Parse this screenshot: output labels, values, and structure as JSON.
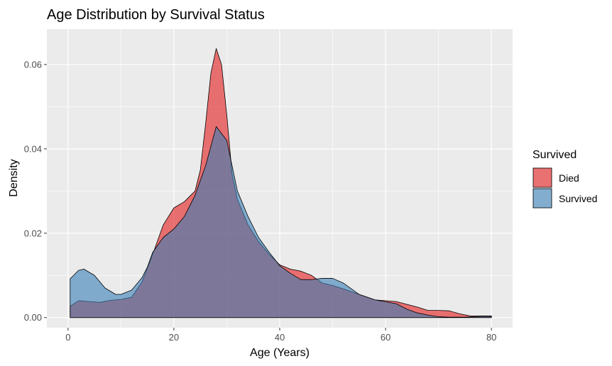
{
  "chart_data": {
    "type": "area",
    "title": "Age Distribution by Survival Status",
    "xlabel": "Age (Years)",
    "ylabel": "Density",
    "xlim": [
      -4,
      84
    ],
    "ylim": [
      -0.0024,
      0.0684
    ],
    "x_ticks": [
      {
        "value": 0,
        "label": "0"
      },
      {
        "value": 20,
        "label": "20"
      },
      {
        "value": 40,
        "label": "40"
      },
      {
        "value": 60,
        "label": "60"
      },
      {
        "value": 80,
        "label": "80"
      }
    ],
    "y_ticks": [
      {
        "value": 0,
        "label": "0.00"
      },
      {
        "value": 0.02,
        "label": "0.02"
      },
      {
        "value": 0.04,
        "label": "0.04"
      },
      {
        "value": 0.06,
        "label": "0.06"
      }
    ],
    "grid": true,
    "legend_position": "right",
    "legend_title": "Survived",
    "series": [
      {
        "name": "Died",
        "color": "#E41A1C",
        "alpha": 0.6,
        "points": [
          [
            0.4,
            0.0027
          ],
          [
            2,
            0.004
          ],
          [
            4,
            0.0038
          ],
          [
            6,
            0.0036
          ],
          [
            8,
            0.0041
          ],
          [
            10,
            0.0043
          ],
          [
            12,
            0.0048
          ],
          [
            14,
            0.0085
          ],
          [
            16,
            0.015
          ],
          [
            18,
            0.022
          ],
          [
            20,
            0.026
          ],
          [
            22,
            0.0275
          ],
          [
            24,
            0.03
          ],
          [
            25,
            0.035
          ],
          [
            26,
            0.046
          ],
          [
            27,
            0.058
          ],
          [
            28,
            0.0638
          ],
          [
            29,
            0.06
          ],
          [
            30,
            0.048
          ],
          [
            31,
            0.034
          ],
          [
            32,
            0.028
          ],
          [
            34,
            0.022
          ],
          [
            36,
            0.018
          ],
          [
            38,
            0.015
          ],
          [
            40,
            0.0125
          ],
          [
            42,
            0.0115
          ],
          [
            44,
            0.011
          ],
          [
            46,
            0.01
          ],
          [
            48,
            0.0082
          ],
          [
            50,
            0.0076
          ],
          [
            52,
            0.0068
          ],
          [
            55,
            0.0055
          ],
          [
            58,
            0.0042
          ],
          [
            62,
            0.0038
          ],
          [
            66,
            0.0025
          ],
          [
            68,
            0.0017
          ],
          [
            70,
            0.0017
          ],
          [
            72,
            0.0016
          ],
          [
            74,
            0.0009
          ],
          [
            76,
            0.0004
          ],
          [
            78,
            0.0004
          ],
          [
            80,
            0.0004
          ]
        ]
      },
      {
        "name": "Survived",
        "color": "#377EB8",
        "alpha": 0.6,
        "points": [
          [
            0.4,
            0.0092
          ],
          [
            2,
            0.0112
          ],
          [
            3,
            0.0115
          ],
          [
            5,
            0.01
          ],
          [
            7,
            0.007
          ],
          [
            9,
            0.0055
          ],
          [
            10,
            0.0055
          ],
          [
            12,
            0.0065
          ],
          [
            14,
            0.0095
          ],
          [
            15,
            0.012
          ],
          [
            16,
            0.0155
          ],
          [
            18,
            0.019
          ],
          [
            20,
            0.021
          ],
          [
            22,
            0.024
          ],
          [
            24,
            0.029
          ],
          [
            26,
            0.036
          ],
          [
            28,
            0.0453
          ],
          [
            30,
            0.042
          ],
          [
            32,
            0.03
          ],
          [
            34,
            0.024
          ],
          [
            36,
            0.019
          ],
          [
            38,
            0.0155
          ],
          [
            40,
            0.0123
          ],
          [
            42,
            0.0105
          ],
          [
            44,
            0.009
          ],
          [
            46,
            0.009
          ],
          [
            48,
            0.0093
          ],
          [
            50,
            0.0093
          ],
          [
            52,
            0.0082
          ],
          [
            55,
            0.0055
          ],
          [
            58,
            0.0042
          ],
          [
            62,
            0.0033
          ],
          [
            64,
            0.002
          ],
          [
            66,
            0.0011
          ],
          [
            68,
            0.0006
          ],
          [
            70,
            0.0002
          ],
          [
            72,
            0.0001
          ],
          [
            75,
            0.0001
          ],
          [
            78,
            0.0003
          ],
          [
            80,
            0.0003
          ]
        ]
      }
    ]
  }
}
